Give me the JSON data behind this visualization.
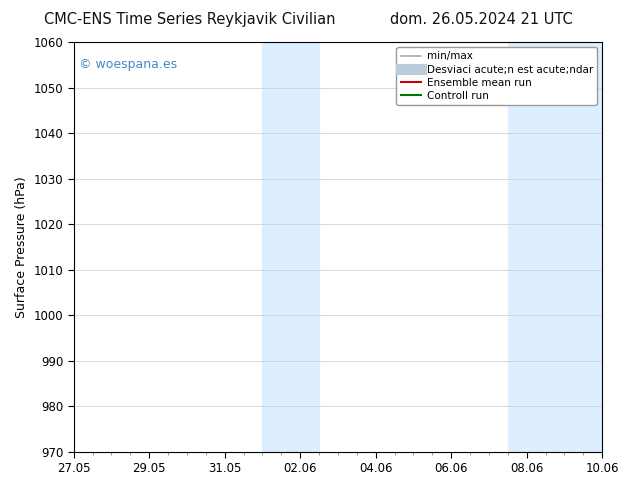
{
  "title_left": "CMC-ENS Time Series Reykjavik Civilian",
  "title_right": "dom. 26.05.2024 21 UTC",
  "ylabel": "Surface Pressure (hPa)",
  "ylim": [
    970,
    1060
  ],
  "yticks": [
    970,
    980,
    990,
    1000,
    1010,
    1020,
    1030,
    1040,
    1050,
    1060
  ],
  "xtick_labels": [
    "27.05",
    "29.05",
    "31.05",
    "02.06",
    "04.06",
    "06.06",
    "08.06",
    "10.06"
  ],
  "xtick_positions": [
    0,
    2,
    4,
    6,
    8,
    10,
    12,
    14
  ],
  "x_total": 14,
  "shaded_regions": [
    {
      "xstart": 5.0,
      "xend": 6.5,
      "color": "#ddeeff"
    },
    {
      "xstart": 11.5,
      "xend": 12.5,
      "color": "#ddeeff"
    },
    {
      "xstart": 12.5,
      "xend": 14.0,
      "color": "#ddeeff"
    }
  ],
  "watermark": "© woespana.es",
  "watermark_color": "#4488cc",
  "legend_items": [
    {
      "label": "min/max",
      "color": "#aaaaaa",
      "lw": 1.2,
      "ls": "-"
    },
    {
      "label": "Desviaci acute;n est acute;ndar",
      "color": "#bbccdd",
      "lw": 8,
      "ls": "-"
    },
    {
      "label": "Ensemble mean run",
      "color": "#cc0000",
      "lw": 1.5,
      "ls": "-"
    },
    {
      "label": "Controll run",
      "color": "#007700",
      "lw": 1.5,
      "ls": "-"
    }
  ],
  "bg_color": "#ffffff",
  "plot_bg_color": "#ffffff",
  "grid_color": "#cccccc",
  "title_fontsize": 10.5,
  "tick_fontsize": 8.5,
  "ylabel_fontsize": 9,
  "watermark_fontsize": 9
}
